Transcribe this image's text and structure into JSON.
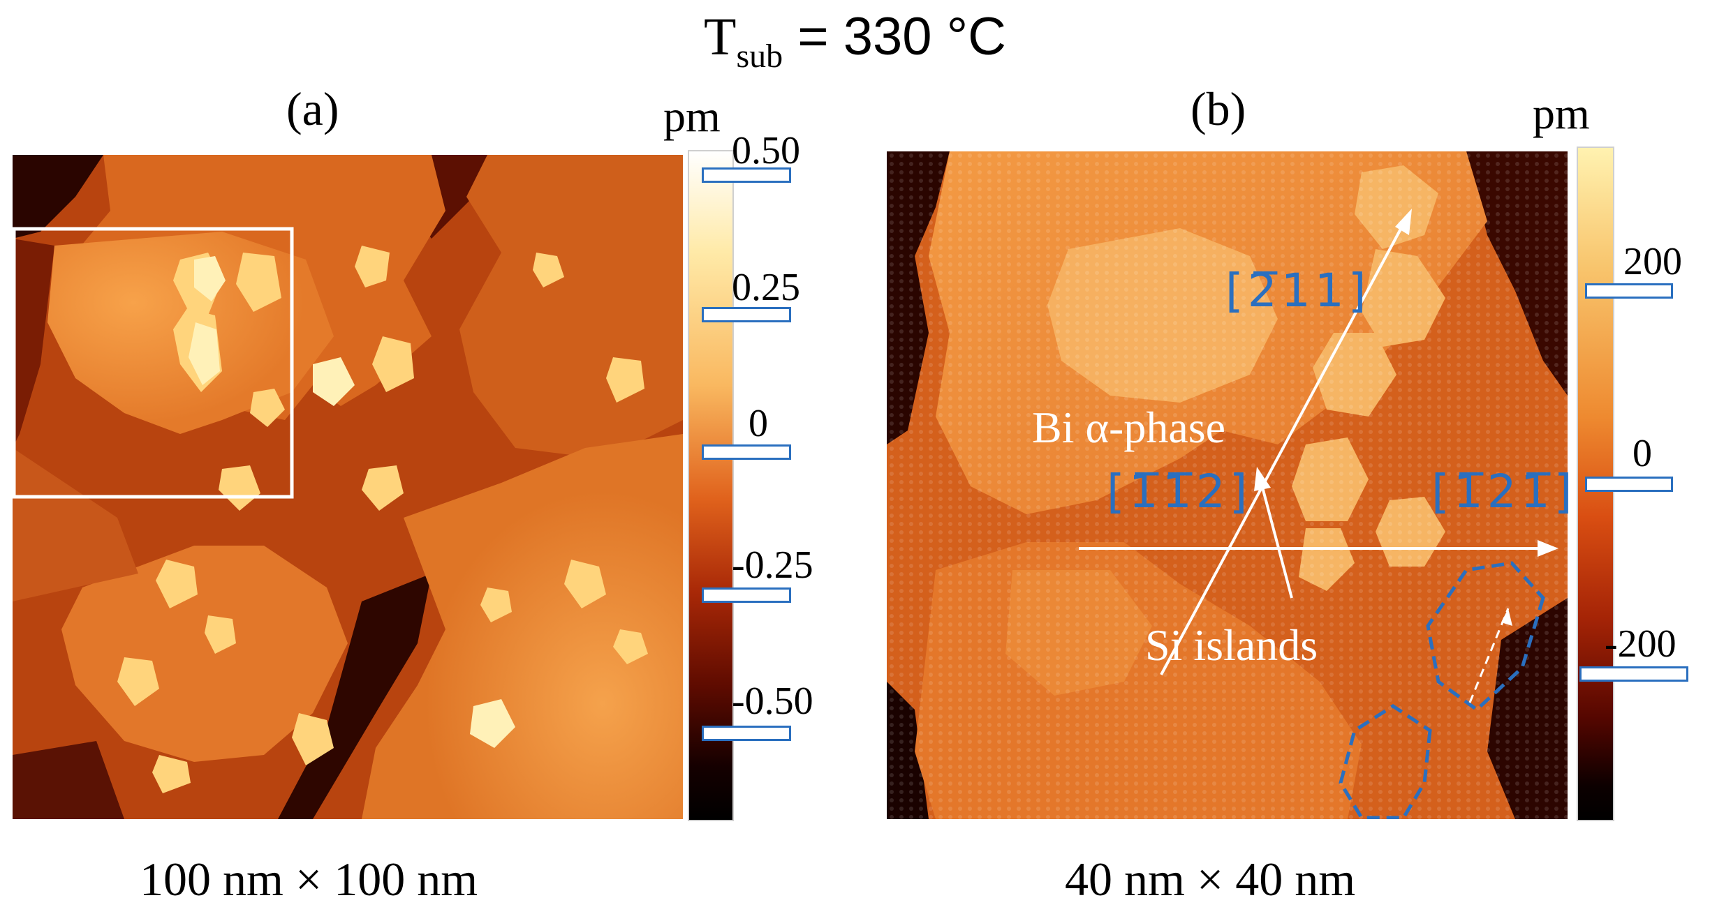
{
  "title": {
    "T": "T",
    "sub": "sub",
    "rest": " = 330 °C"
  },
  "panel_a": {
    "label": "(a)",
    "unit": "pm",
    "colorbar_ticks": [
      "0.50",
      "0.25",
      "0",
      "-0.25",
      "-0.50"
    ],
    "caption": "100 nm × 100 nm"
  },
  "panel_b": {
    "label": "(b)",
    "unit": "pm",
    "colorbar_ticks": [
      "200",
      "0",
      "-200"
    ],
    "caption": "40 nm × 40 nm",
    "annotations": {
      "bi_phase": "Bi α-phase",
      "si_islands": "Si islands",
      "dir_211": "[2̅11]",
      "dir_112": "[1̅1̅2]",
      "dir_121": "[1̅21̅]"
    }
  },
  "colors": {
    "annotation_blue": "#2a6fbf",
    "frame_white": "#ffffff"
  }
}
